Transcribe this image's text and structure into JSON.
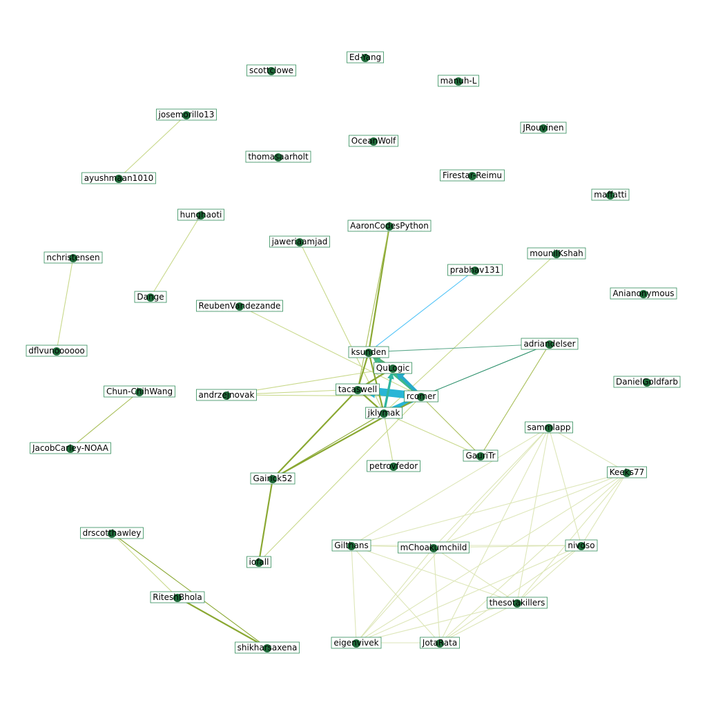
{
  "graph": {
    "nodes": [
      {
        "id": "Ed-Yang",
        "label": "Ed-Yang"
      },
      {
        "id": "scottclowe",
        "label": "scottclowe"
      },
      {
        "id": "manuh-L",
        "label": "manuh-L"
      },
      {
        "id": "josemorillo13",
        "label": "josemorillo13"
      },
      {
        "id": "JRouvinen",
        "label": "JRouvinen"
      },
      {
        "id": "OceanWolf",
        "label": "OceanWolf"
      },
      {
        "id": "thomasaarholt",
        "label": "thomasaarholt"
      },
      {
        "id": "ayushmaan1010",
        "label": "ayushmaan1010"
      },
      {
        "id": "Firestar-Reimu",
        "label": "Firestar-Reimu"
      },
      {
        "id": "maffatti",
        "label": "maffatti"
      },
      {
        "id": "hunghaoti",
        "label": "hunghaoti"
      },
      {
        "id": "AaronCodesPython",
        "label": "AaronCodesPython"
      },
      {
        "id": "jaweriaamjad",
        "label": "jaweriaamjad"
      },
      {
        "id": "mounilKshah",
        "label": "mounilKshah"
      },
      {
        "id": "nchristensen",
        "label": "nchristensen"
      },
      {
        "id": "prabhav131",
        "label": "prabhav131"
      },
      {
        "id": "Anianonymous",
        "label": "Anianonymous"
      },
      {
        "id": "Dange",
        "label": "Dange"
      },
      {
        "id": "ReubenVandezande",
        "label": "ReubenVandezande"
      },
      {
        "id": "adriandelser",
        "label": "adriandelser"
      },
      {
        "id": "dflvunoooooo",
        "label": "dflvunoooooo"
      },
      {
        "id": "ksunden",
        "label": "ksunden"
      },
      {
        "id": "QuLogic",
        "label": "QuLogic"
      },
      {
        "id": "DanielGoldfarb",
        "label": "DanielGoldfarb"
      },
      {
        "id": "Chun-ChihWang",
        "label": "Chun-ChihWang"
      },
      {
        "id": "andrzejnovak",
        "label": "andrzejnovak"
      },
      {
        "id": "tacaswell",
        "label": "tacaswell"
      },
      {
        "id": "rcomer",
        "label": "rcomer"
      },
      {
        "id": "jklymak",
        "label": "jklymak"
      },
      {
        "id": "sammlapp",
        "label": "sammlapp"
      },
      {
        "id": "JacobCarley-NOAA",
        "label": "JacobCarley-NOAA"
      },
      {
        "id": "GauriTr",
        "label": "GauriTr"
      },
      {
        "id": "petrovfedor",
        "label": "petrovfedor"
      },
      {
        "id": "Keeks77",
        "label": "Keeks77"
      },
      {
        "id": "Gairick52",
        "label": "Gairick52"
      },
      {
        "id": "drscotthawley",
        "label": "drscotthawley"
      },
      {
        "id": "Gilthans",
        "label": "Gilthans"
      },
      {
        "id": "mChoakumchild",
        "label": "mChoakumchild"
      },
      {
        "id": "nivdso",
        "label": "nivdso"
      },
      {
        "id": "iofall",
        "label": "iofall"
      },
      {
        "id": "RiteshBhola",
        "label": "RiteshBhola"
      },
      {
        "id": "thesotakillers",
        "label": "thesotakillers"
      },
      {
        "id": "shikharsaxena",
        "label": "shikharsaxena"
      },
      {
        "id": "eigenvivek",
        "label": "eigenvivek"
      },
      {
        "id": "JotaRata",
        "label": "JotaRata"
      }
    ],
    "edges": [
      {
        "source": "josemorillo13",
        "target": "ayushmaan1010",
        "weight": 1,
        "color": "#c8d88a"
      },
      {
        "source": "hunghaoti",
        "target": "Dange",
        "weight": 1,
        "color": "#c8d88a"
      },
      {
        "source": "nchristensen",
        "target": "dflvunoooooo",
        "weight": 1,
        "color": "#c8d88a"
      },
      {
        "source": "Chun-ChihWang",
        "target": "JacobCarley-NOAA",
        "weight": 1,
        "color": "#a9bf5a"
      },
      {
        "source": "drscotthawley",
        "target": "RiteshBhola",
        "weight": 1,
        "color": "#c8d88a"
      },
      {
        "source": "drscotthawley",
        "target": "shikharsaxena",
        "weight": 1,
        "color": "#8aa832"
      },
      {
        "source": "RiteshBhola",
        "target": "shikharsaxena",
        "weight": 2,
        "color": "#8aa832"
      },
      {
        "source": "AaronCodesPython",
        "target": "ksunden",
        "weight": 2,
        "color": "#8aa832"
      },
      {
        "source": "AaronCodesPython",
        "target": "tacaswell",
        "weight": 1,
        "color": "#a9bf5a"
      },
      {
        "source": "jaweriaamjad",
        "target": "jklymak",
        "weight": 1,
        "color": "#c8d88a"
      },
      {
        "source": "prabhav131",
        "target": "ksunden",
        "weight": 1,
        "color": "#4fc3f7"
      },
      {
        "source": "mounilKshah",
        "target": "jklymak",
        "weight": 1,
        "color": "#c8d88a"
      },
      {
        "source": "ReubenVandezande",
        "target": "rcomer",
        "weight": 1,
        "color": "#c8d88a"
      },
      {
        "source": "adriandelser",
        "target": "ksunden",
        "weight": 1,
        "color": "#5aa88a"
      },
      {
        "source": "adriandelser",
        "target": "rcomer",
        "weight": 1,
        "color": "#2a8f6a"
      },
      {
        "source": "adriandelser",
        "target": "GauriTr",
        "weight": 1,
        "color": "#a9bf5a"
      },
      {
        "source": "andrzejnovak",
        "target": "tacaswell",
        "weight": 1,
        "color": "#c8d88a"
      },
      {
        "source": "andrzejnovak",
        "target": "rcomer",
        "weight": 1,
        "color": "#c8d88a"
      },
      {
        "source": "andrzejnovak",
        "target": "QuLogic",
        "weight": 1,
        "color": "#c8d88a"
      },
      {
        "source": "rcomer",
        "target": "tacaswell",
        "weight": 10,
        "color": "#29b6d6"
      },
      {
        "source": "rcomer",
        "target": "jklymak",
        "weight": 6,
        "color": "#29b6d6"
      },
      {
        "source": "rcomer",
        "target": "ksunden",
        "weight": 5,
        "color": "#3fb88a"
      },
      {
        "source": "rcomer",
        "target": "QuLogic",
        "weight": 4,
        "color": "#26a9c9"
      },
      {
        "source": "jklymak",
        "target": "QuLogic",
        "weight": 3,
        "color": "#2fb5a0"
      },
      {
        "source": "jklymak",
        "target": "ksunden",
        "weight": 2,
        "color": "#8aa832"
      },
      {
        "source": "tacaswell",
        "target": "ksunden",
        "weight": 2,
        "color": "#8aa832"
      },
      {
        "source": "tacaswell",
        "target": "QuLogic",
        "weight": 2,
        "color": "#8aa832"
      },
      {
        "source": "tacaswell",
        "target": "jklymak",
        "weight": 2,
        "color": "#8aa832"
      },
      {
        "source": "QuLogic",
        "target": "ksunden",
        "weight": 2,
        "color": "#5aaa70"
      },
      {
        "source": "rcomer",
        "target": "GauriTr",
        "weight": 1,
        "color": "#a9bf5a"
      },
      {
        "source": "jklymak",
        "target": "GauriTr",
        "weight": 1,
        "color": "#c8d88a"
      },
      {
        "source": "jklymak",
        "target": "petrovfedor",
        "weight": 1,
        "color": "#c8d88a"
      },
      {
        "source": "Gairick52",
        "target": "tacaswell",
        "weight": 2,
        "color": "#8aa832"
      },
      {
        "source": "Gairick52",
        "target": "rcomer",
        "weight": 2,
        "color": "#8aa832"
      },
      {
        "source": "Gairick52",
        "target": "jklymak",
        "weight": 1,
        "color": "#8aa832"
      },
      {
        "source": "Gairick52",
        "target": "iofall",
        "weight": 2,
        "color": "#8aa832"
      },
      {
        "source": "iofall",
        "target": "rcomer",
        "weight": 1,
        "color": "#c8d88a"
      },
      {
        "source": "sammlapp",
        "target": "Keeks77",
        "weight": 1,
        "color": "#dde6b8"
      },
      {
        "source": "sammlapp",
        "target": "Gilthans",
        "weight": 1,
        "color": "#dde6b8"
      },
      {
        "source": "sammlapp",
        "target": "mChoakumchild",
        "weight": 1,
        "color": "#dde6b8"
      },
      {
        "source": "sammlapp",
        "target": "nivdso",
        "weight": 1,
        "color": "#dde6b8"
      },
      {
        "source": "sammlapp",
        "target": "thesotakillers",
        "weight": 1,
        "color": "#dde6b8"
      },
      {
        "source": "sammlapp",
        "target": "eigenvivek",
        "weight": 1,
        "color": "#dde6b8"
      },
      {
        "source": "sammlapp",
        "target": "JotaRata",
        "weight": 1,
        "color": "#dde6b8"
      },
      {
        "source": "Keeks77",
        "target": "Gilthans",
        "weight": 1,
        "color": "#dde6b8"
      },
      {
        "source": "Keeks77",
        "target": "mChoakumchild",
        "weight": 1,
        "color": "#dde6b8"
      },
      {
        "source": "Keeks77",
        "target": "nivdso",
        "weight": 1,
        "color": "#dde6b8"
      },
      {
        "source": "Keeks77",
        "target": "thesotakillers",
        "weight": 1,
        "color": "#dde6b8"
      },
      {
        "source": "Keeks77",
        "target": "eigenvivek",
        "weight": 1,
        "color": "#dde6b8"
      },
      {
        "source": "Keeks77",
        "target": "JotaRata",
        "weight": 1,
        "color": "#dde6b8"
      },
      {
        "source": "Gilthans",
        "target": "mChoakumchild",
        "weight": 1,
        "color": "#dde6b8"
      },
      {
        "source": "Gilthans",
        "target": "nivdso",
        "weight": 1,
        "color": "#dde6b8"
      },
      {
        "source": "Gilthans",
        "target": "thesotakillers",
        "weight": 1,
        "color": "#dde6b8"
      },
      {
        "source": "Gilthans",
        "target": "eigenvivek",
        "weight": 1,
        "color": "#dde6b8"
      },
      {
        "source": "Gilthans",
        "target": "JotaRata",
        "weight": 1,
        "color": "#dde6b8"
      },
      {
        "source": "mChoakumchild",
        "target": "nivdso",
        "weight": 1,
        "color": "#dde6b8"
      },
      {
        "source": "mChoakumchild",
        "target": "thesotakillers",
        "weight": 1,
        "color": "#dde6b8"
      },
      {
        "source": "mChoakumchild",
        "target": "eigenvivek",
        "weight": 1,
        "color": "#dde6b8"
      },
      {
        "source": "mChoakumchild",
        "target": "JotaRata",
        "weight": 1,
        "color": "#dde6b8"
      },
      {
        "source": "nivdso",
        "target": "thesotakillers",
        "weight": 1,
        "color": "#dde6b8"
      },
      {
        "source": "nivdso",
        "target": "eigenvivek",
        "weight": 1,
        "color": "#dde6b8"
      },
      {
        "source": "nivdso",
        "target": "JotaRata",
        "weight": 1,
        "color": "#dde6b8"
      },
      {
        "source": "thesotakillers",
        "target": "eigenvivek",
        "weight": 1,
        "color": "#dde6b8"
      },
      {
        "source": "thesotakillers",
        "target": "JotaRata",
        "weight": 1,
        "color": "#dde6b8"
      },
      {
        "source": "eigenvivek",
        "target": "JotaRata",
        "weight": 1,
        "color": "#dde6b8"
      }
    ]
  }
}
